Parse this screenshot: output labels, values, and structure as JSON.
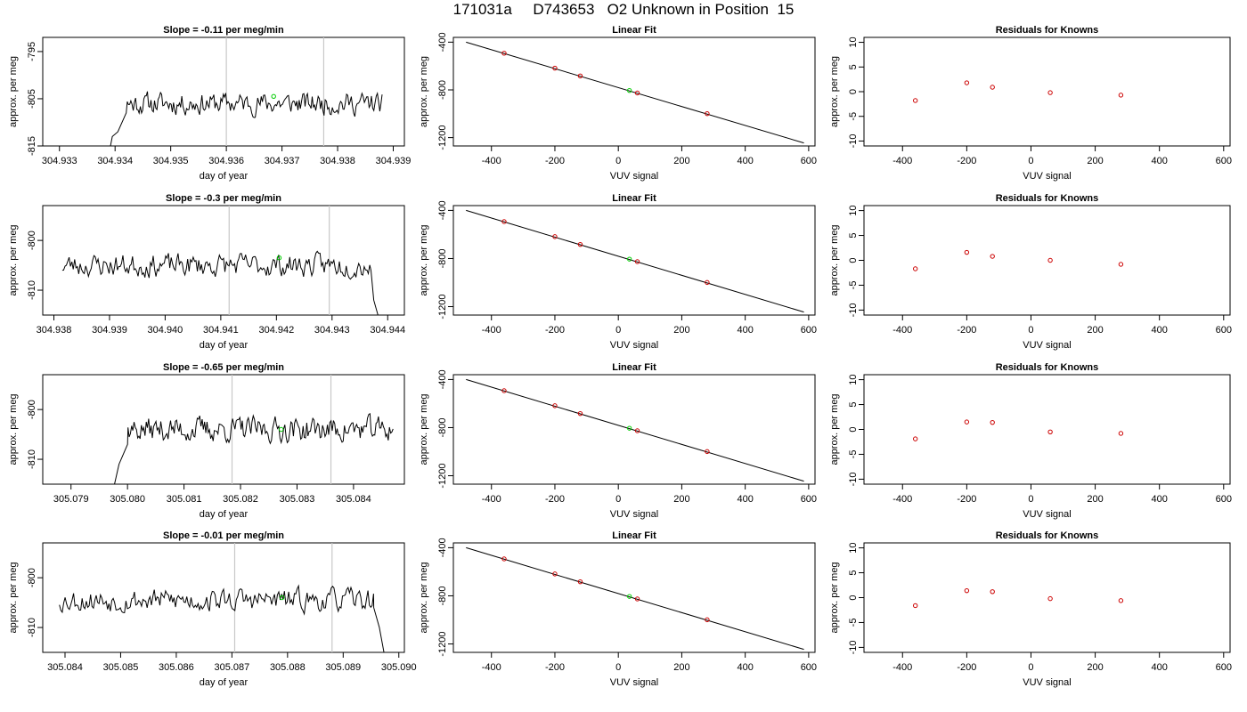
{
  "page_title": "171031a     D743653   O2 Unknown in Position  15",
  "colors": {
    "line": "#000000",
    "known": "#cc0000",
    "unknown": "#00cc00",
    "vline": "#c8c8c8",
    "frame": "#000000"
  },
  "chart_data": [
    {
      "type": "line",
      "role": "timeseries",
      "title": "Slope =  -0.11  per meg/min",
      "xlabel": "day of year",
      "ylabel": "approx. per meg",
      "xlim": [
        304.9327,
        304.9392
      ],
      "ylim": [
        -815,
        -792
      ],
      "xticks": [
        "304.933",
        "304.934",
        "304.935",
        "304.936",
        "304.937",
        "304.938",
        "304.939"
      ],
      "yticks": [
        "-795",
        "-805",
        "-815"
      ],
      "vlines": [
        304.936,
        304.93775
      ],
      "series": {
        "x_start": 304.9339,
        "x_end": 304.9388,
        "y_start": -816,
        "base": -806,
        "amp": 2.2,
        "seed": 11,
        "ramp_points": [
          [
            304.9339,
            -816
          ],
          [
            304.93395,
            -813
          ],
          [
            304.93405,
            -812
          ],
          [
            304.9342,
            -808
          ]
        ]
      },
      "unknown_point": {
        "x": 304.93685,
        "y": -804.5
      }
    },
    {
      "type": "scatter",
      "role": "linear_fit",
      "title": "Linear Fit",
      "xlabel": "VUV signal",
      "ylabel": "approx. per meg",
      "xlim": [
        -520,
        620
      ],
      "ylim": [
        -1270,
        -360
      ],
      "xticks": [
        "-400",
        "-200",
        "0",
        "200",
        "400",
        "600"
      ],
      "yticks": [
        "-400",
        "-800",
        "-1200"
      ],
      "fit_line": {
        "x": [
          -480,
          585
        ],
        "y": [
          -400,
          -1245
        ]
      },
      "knowns": [
        {
          "x": -360,
          "y": -493
        },
        {
          "x": -200,
          "y": -618
        },
        {
          "x": -120,
          "y": -683
        },
        {
          "x": 60,
          "y": -826
        },
        {
          "x": 280,
          "y": -999
        }
      ],
      "unknown_point": {
        "x": 35,
        "y": -805
      }
    },
    {
      "type": "scatter",
      "role": "residuals",
      "title": "Residuals for Knowns",
      "xlabel": "VUV signal",
      "ylabel": "approx. per meg",
      "xlim": [
        -520,
        620
      ],
      "ylim": [
        -11,
        11
      ],
      "xticks": [
        "-400",
        "-200",
        "0",
        "200",
        "400",
        "600"
      ],
      "yticks": [
        "10",
        "5",
        "0",
        "-5",
        "-10"
      ],
      "knowns": [
        {
          "x": -360,
          "y": -1.8
        },
        {
          "x": -200,
          "y": 1.8
        },
        {
          "x": -120,
          "y": 0.9
        },
        {
          "x": 60,
          "y": -0.2
        },
        {
          "x": 280,
          "y": -0.7
        }
      ]
    },
    {
      "type": "line",
      "role": "timeseries",
      "title": "Slope =  -0.3  per meg/min",
      "xlabel": "day of year",
      "ylabel": "approx. per meg",
      "xlim": [
        304.9378,
        304.9443
      ],
      "ylim": [
        -815,
        -793
      ],
      "xticks": [
        "304.938",
        "304.939",
        "304.940",
        "304.941",
        "304.942",
        "304.943",
        "304.944"
      ],
      "yticks": [
        "-800",
        "-810"
      ],
      "vlines": [
        304.94115,
        304.94295
      ],
      "series": {
        "x_start": 304.93815,
        "x_end": 304.94385,
        "y_start": -806,
        "base": -805,
        "amp": 2.2,
        "seed": 23,
        "ramp_points": [
          [
            304.9437,
            -806
          ],
          [
            304.94375,
            -812
          ],
          [
            304.94385,
            -816
          ]
        ]
      },
      "unknown_point": {
        "x": 304.94205,
        "y": -803.5
      }
    },
    {
      "type": "scatter",
      "role": "linear_fit",
      "title": "Linear Fit",
      "xlabel": "VUV signal",
      "ylabel": "approx. per meg",
      "xlim": [
        -520,
        620
      ],
      "ylim": [
        -1270,
        -360
      ],
      "xticks": [
        "-400",
        "-200",
        "0",
        "200",
        "400",
        "600"
      ],
      "yticks": [
        "-400",
        "-800",
        "-1200"
      ],
      "fit_line": {
        "x": [
          -480,
          585
        ],
        "y": [
          -400,
          -1245
        ]
      },
      "knowns": [
        {
          "x": -360,
          "y": -493
        },
        {
          "x": -200,
          "y": -618
        },
        {
          "x": -120,
          "y": -683
        },
        {
          "x": 60,
          "y": -826
        },
        {
          "x": 280,
          "y": -999
        }
      ],
      "unknown_point": {
        "x": 35,
        "y": -805
      }
    },
    {
      "type": "scatter",
      "role": "residuals",
      "title": "Residuals for Knowns",
      "xlabel": "VUV signal",
      "ylabel": "approx. per meg",
      "xlim": [
        -520,
        620
      ],
      "ylim": [
        -11,
        11
      ],
      "xticks": [
        "-400",
        "-200",
        "0",
        "200",
        "400",
        "600"
      ],
      "yticks": [
        "10",
        "5",
        "0",
        "-5",
        "-10"
      ],
      "knowns": [
        {
          "x": -360,
          "y": -1.7
        },
        {
          "x": -200,
          "y": 1.6
        },
        {
          "x": -120,
          "y": 0.8
        },
        {
          "x": 60,
          "y": 0.0
        },
        {
          "x": 280,
          "y": -0.8
        }
      ]
    },
    {
      "type": "line",
      "role": "timeseries",
      "title": "Slope =  -0.65  per meg/min",
      "xlabel": "day of year",
      "ylabel": "approx. per meg",
      "xlim": [
        305.0785,
        305.0849
      ],
      "ylim": [
        -815,
        -793
      ],
      "xticks": [
        "305.079",
        "305.080",
        "305.081",
        "305.082",
        "305.083",
        "305.084"
      ],
      "yticks": [
        "-800",
        "-810"
      ],
      "vlines": [
        305.08185,
        305.0836
      ],
      "series": {
        "x_start": 305.07975,
        "x_end": 305.0847,
        "y_start": -816,
        "base": -804,
        "amp": 2.4,
        "seed": 37,
        "ramp_points": [
          [
            305.07975,
            -816
          ],
          [
            305.07985,
            -811
          ],
          [
            305.08,
            -807
          ]
        ]
      },
      "unknown_point": {
        "x": 305.08272,
        "y": -804
      }
    },
    {
      "type": "scatter",
      "role": "linear_fit",
      "title": "Linear Fit",
      "xlabel": "VUV signal",
      "ylabel": "approx. per meg",
      "xlim": [
        -520,
        620
      ],
      "ylim": [
        -1270,
        -360
      ],
      "xticks": [
        "-400",
        "-200",
        "0",
        "200",
        "400",
        "600"
      ],
      "yticks": [
        "-400",
        "-800",
        "-1200"
      ],
      "fit_line": {
        "x": [
          -480,
          585
        ],
        "y": [
          -400,
          -1245
        ]
      },
      "knowns": [
        {
          "x": -360,
          "y": -493
        },
        {
          "x": -200,
          "y": -618
        },
        {
          "x": -120,
          "y": -683
        },
        {
          "x": 60,
          "y": -826
        },
        {
          "x": 280,
          "y": -999
        }
      ],
      "unknown_point": {
        "x": 35,
        "y": -805
      }
    },
    {
      "type": "scatter",
      "role": "residuals",
      "title": "Residuals for Knowns",
      "xlabel": "VUV signal",
      "ylabel": "approx. per meg",
      "xlim": [
        -520,
        620
      ],
      "ylim": [
        -11,
        11
      ],
      "xticks": [
        "-400",
        "-200",
        "0",
        "200",
        "400",
        "600"
      ],
      "yticks": [
        "10",
        "5",
        "0",
        "-5",
        "-10"
      ],
      "knowns": [
        {
          "x": -360,
          "y": -1.9
        },
        {
          "x": -200,
          "y": 1.5
        },
        {
          "x": -120,
          "y": 1.4
        },
        {
          "x": 60,
          "y": -0.5
        },
        {
          "x": 280,
          "y": -0.8
        }
      ]
    },
    {
      "type": "line",
      "role": "timeseries",
      "title": "Slope =  -0.01  per meg/min",
      "xlabel": "day of year",
      "ylabel": "approx. per meg",
      "xlim": [
        305.0836,
        305.0901
      ],
      "ylim": [
        -815,
        -793
      ],
      "xticks": [
        "305.084",
        "305.085",
        "305.086",
        "305.087",
        "305.088",
        "305.089",
        "305.090"
      ],
      "yticks": [
        "-800",
        "-810"
      ],
      "vlines": [
        305.08705,
        305.0888
      ],
      "series": {
        "x_start": 305.0839,
        "x_end": 305.08975,
        "y_start": -806,
        "base": -804.5,
        "amp": 2.2,
        "seed": 53,
        "ramp_points": [
          [
            305.08955,
            -806
          ],
          [
            305.08965,
            -810
          ],
          [
            305.08975,
            -816
          ]
        ]
      },
      "unknown_point": {
        "x": 305.0879,
        "y": -804
      }
    },
    {
      "type": "scatter",
      "role": "linear_fit",
      "title": "Linear Fit",
      "xlabel": "VUV signal",
      "ylabel": "approx. per meg",
      "xlim": [
        -520,
        620
      ],
      "ylim": [
        -1270,
        -360
      ],
      "xticks": [
        "-400",
        "-200",
        "0",
        "200",
        "400",
        "600"
      ],
      "yticks": [
        "-400",
        "-800",
        "-1200"
      ],
      "fit_line": {
        "x": [
          -480,
          585
        ],
        "y": [
          -400,
          -1245
        ]
      },
      "knowns": [
        {
          "x": -360,
          "y": -493
        },
        {
          "x": -200,
          "y": -618
        },
        {
          "x": -120,
          "y": -683
        },
        {
          "x": 60,
          "y": -826
        },
        {
          "x": 280,
          "y": -999
        }
      ],
      "unknown_point": {
        "x": 35,
        "y": -805
      }
    },
    {
      "type": "scatter",
      "role": "residuals",
      "title": "Residuals for Knowns",
      "xlabel": "VUV signal",
      "ylabel": "approx. per meg",
      "xlim": [
        -520,
        620
      ],
      "ylim": [
        -11,
        11
      ],
      "xticks": [
        "-400",
        "-200",
        "0",
        "200",
        "400",
        "600"
      ],
      "yticks": [
        "10",
        "5",
        "0",
        "-5",
        "-10"
      ],
      "knowns": [
        {
          "x": -360,
          "y": -1.6
        },
        {
          "x": -200,
          "y": 1.4
        },
        {
          "x": -120,
          "y": 1.2
        },
        {
          "x": 60,
          "y": -0.2
        },
        {
          "x": 280,
          "y": -0.6
        }
      ]
    }
  ]
}
